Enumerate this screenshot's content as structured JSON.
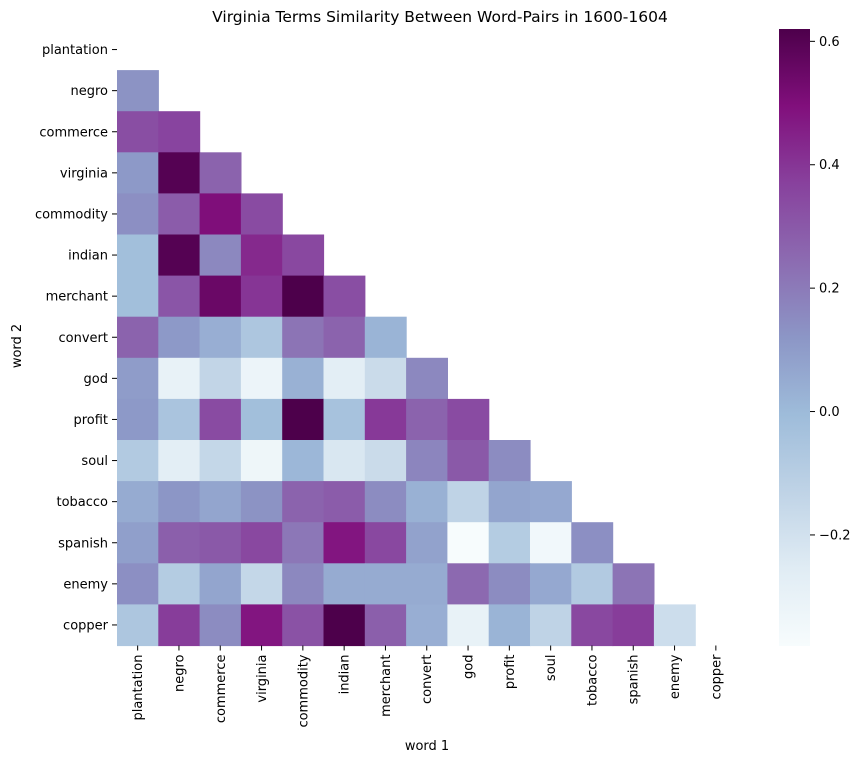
{
  "chart_data": {
    "type": "heatmap",
    "title": "Virginia Terms Similarity Between Word-Pairs in 1600-1604",
    "xlabel": "word 1",
    "ylabel": "word 2",
    "x_categories": [
      "plantation",
      "negro",
      "commerce",
      "virginia",
      "commodity",
      "indian",
      "merchant",
      "convert",
      "god",
      "profit",
      "soul",
      "tobacco",
      "spanish",
      "enemy",
      "copper"
    ],
    "y_categories": [
      "plantation",
      "negro",
      "commerce",
      "virginia",
      "commodity",
      "indian",
      "merchant",
      "convert",
      "god",
      "profit",
      "soul",
      "tobacco",
      "spanish",
      "enemy",
      "copper"
    ],
    "mask": "upper-triangle-and-diagonal",
    "values": [
      [
        null,
        null,
        null,
        null,
        null,
        null,
        null,
        null,
        null,
        null,
        null,
        null,
        null,
        null,
        null
      ],
      [
        0.13,
        null,
        null,
        null,
        null,
        null,
        null,
        null,
        null,
        null,
        null,
        null,
        null,
        null,
        null
      ],
      [
        0.33,
        0.36,
        null,
        null,
        null,
        null,
        null,
        null,
        null,
        null,
        null,
        null,
        null,
        null,
        null
      ],
      [
        0.11,
        0.6,
        0.27,
        null,
        null,
        null,
        null,
        null,
        null,
        null,
        null,
        null,
        null,
        null,
        null
      ],
      [
        0.14,
        0.29,
        0.5,
        0.34,
        null,
        null,
        null,
        null,
        null,
        null,
        null,
        null,
        null,
        null,
        null
      ],
      [
        -0.02,
        0.6,
        0.16,
        0.43,
        0.35,
        null,
        null,
        null,
        null,
        null,
        null,
        null,
        null,
        null,
        null
      ],
      [
        -0.02,
        0.31,
        0.55,
        0.4,
        0.62,
        0.33,
        null,
        null,
        null,
        null,
        null,
        null,
        null,
        null,
        null
      ],
      [
        0.27,
        0.11,
        0.04,
        -0.06,
        0.22,
        0.27,
        0.02,
        null,
        null,
        null,
        null,
        null,
        null,
        null,
        null
      ],
      [
        0.1,
        -0.3,
        -0.14,
        -0.32,
        0.03,
        -0.27,
        -0.17,
        0.16,
        null,
        null,
        null,
        null,
        null,
        null,
        null
      ],
      [
        0.11,
        -0.05,
        0.34,
        -0.02,
        0.62,
        -0.04,
        0.39,
        0.27,
        0.34,
        null,
        null,
        null,
        null,
        null,
        null
      ],
      [
        -0.08,
        -0.27,
        -0.15,
        -0.33,
        0.01,
        -0.23,
        -0.17,
        0.17,
        0.3,
        0.15,
        null,
        null,
        null,
        null,
        null
      ],
      [
        0.05,
        0.12,
        0.07,
        0.13,
        0.27,
        0.29,
        0.15,
        0.03,
        -0.13,
        0.07,
        0.06,
        null,
        null,
        null,
        null
      ],
      [
        0.09,
        0.28,
        0.3,
        0.35,
        0.21,
        0.48,
        0.35,
        0.08,
        -0.38,
        -0.09,
        -0.35,
        0.14,
        null,
        null,
        null
      ],
      [
        0.14,
        -0.09,
        0.07,
        -0.15,
        0.16,
        0.05,
        0.05,
        0.05,
        0.25,
        0.15,
        0.06,
        -0.08,
        0.22,
        null,
        null
      ],
      [
        -0.06,
        0.38,
        0.15,
        0.48,
        0.32,
        0.62,
        0.28,
        0.04,
        -0.3,
        0.02,
        -0.13,
        0.35,
        0.38,
        -0.18,
        null
      ]
    ],
    "colorbar": {
      "min": -0.38,
      "max": 0.62,
      "ticks": [
        0.6,
        0.4,
        0.2,
        0.0,
        -0.2
      ],
      "tick_labels": [
        "0.6",
        "0.4",
        "0.2",
        "0.0",
        "−0.2"
      ]
    },
    "colormap": [
      "#f7fcfd",
      "#e0ecf4",
      "#bfd3e6",
      "#9ebcda",
      "#8c96c6",
      "#8c6bb1",
      "#88419d",
      "#810f7c",
      "#4d004b"
    ],
    "grid": false,
    "legend": "colorbar-right"
  }
}
